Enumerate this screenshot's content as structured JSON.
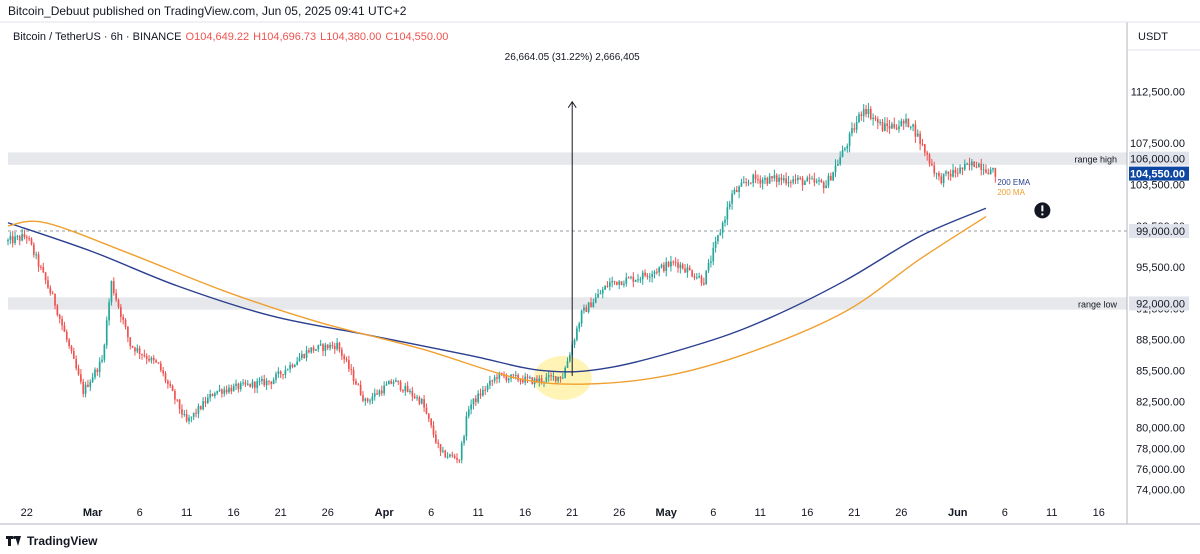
{
  "header": {
    "published_line": "Bitcoin_Debuut published on TradingView.com, Jun 05, 2025 09:41 UTC+2"
  },
  "footer": {
    "brand": "TradingView"
  },
  "chart_data": {
    "type": "candlestick",
    "symbol_line": {
      "name": "Bitcoin / TetherUS · 6h · BINANCE",
      "open": "O104,649.22",
      "high": "H104,696.73",
      "low": "L104,380.00",
      "close": "C104,550.00"
    },
    "currency": "USDT",
    "x_start": "2025-02-20",
    "x_end": "2025-06-19",
    "ylim": [
      73000,
      116500
    ],
    "x_ticks": [
      {
        "date": "2025-02-22",
        "label": "22"
      },
      {
        "date": "2025-03-01",
        "label": "Mar"
      },
      {
        "date": "2025-03-06",
        "label": "6"
      },
      {
        "date": "2025-03-11",
        "label": "11"
      },
      {
        "date": "2025-03-16",
        "label": "16"
      },
      {
        "date": "2025-03-21",
        "label": "21"
      },
      {
        "date": "2025-03-26",
        "label": "26"
      },
      {
        "date": "2025-04-01",
        "label": "Apr"
      },
      {
        "date": "2025-04-06",
        "label": "6"
      },
      {
        "date": "2025-04-11",
        "label": "11"
      },
      {
        "date": "2025-04-16",
        "label": "16"
      },
      {
        "date": "2025-04-21",
        "label": "21"
      },
      {
        "date": "2025-04-26",
        "label": "26"
      },
      {
        "date": "2025-05-01",
        "label": "May"
      },
      {
        "date": "2025-05-06",
        "label": "6"
      },
      {
        "date": "2025-05-11",
        "label": "11"
      },
      {
        "date": "2025-05-16",
        "label": "16"
      },
      {
        "date": "2025-05-21",
        "label": "21"
      },
      {
        "date": "2025-05-26",
        "label": "26"
      },
      {
        "date": "2025-06-01",
        "label": "Jun"
      },
      {
        "date": "2025-06-06",
        "label": "6"
      },
      {
        "date": "2025-06-11",
        "label": "11"
      },
      {
        "date": "2025-06-16",
        "label": "16"
      }
    ],
    "y_ticks": [
      {
        "value": 112500,
        "label": "112,500.00"
      },
      {
        "value": 107500,
        "label": "107,500.00"
      },
      {
        "value": 103500,
        "label": "103,500.00"
      },
      {
        "value": 99500,
        "label": "99,500.00"
      },
      {
        "value": 95500,
        "label": "95,500.00"
      },
      {
        "value": 91500,
        "label": "91,500.00"
      },
      {
        "value": 88500,
        "label": "88,500.00"
      },
      {
        "value": 85500,
        "label": "85,500.00"
      },
      {
        "value": 82500,
        "label": "82,500.00"
      },
      {
        "value": 80000,
        "label": "80,000.00"
      },
      {
        "value": 78000,
        "label": "78,000.00"
      },
      {
        "value": 76000,
        "label": "76,000.00"
      },
      {
        "value": 74000,
        "label": "74,000.00"
      }
    ],
    "price_labels": [
      {
        "value": 106000,
        "label": "106,000.00",
        "style": "grey"
      },
      {
        "value": 104550,
        "label": "104,550.00",
        "style": "last"
      },
      {
        "value": 99000,
        "label": "99,000.00",
        "style": "grey"
      },
      {
        "value": 92000,
        "label": "92,000.00",
        "style": "grey"
      }
    ],
    "zones": [
      {
        "low": 105400,
        "high": 106600,
        "label": "range high"
      },
      {
        "low": 91400,
        "high": 92600,
        "label": "range low"
      }
    ],
    "dashed_level": 99000,
    "colors": {
      "up": "#26a69a",
      "down": "#ef5350",
      "ema": "#2a3f8f",
      "ma": "#f0a030",
      "zone": "#e7e8eb",
      "last": "#0d47a1",
      "highlight": "#fff2a8",
      "text": "#131722",
      "axis": "#b2b5be"
    },
    "series": [
      {
        "name": "200 EMA",
        "x": [
          "2025-02-20",
          "2025-03-01",
          "2025-03-10",
          "2025-03-20",
          "2025-03-30",
          "2025-04-10",
          "2025-04-18",
          "2025-04-25",
          "2025-05-05",
          "2025-05-12",
          "2025-05-20",
          "2025-05-28",
          "2025-06-04"
        ],
        "values": [
          99800,
          97000,
          93700,
          90800,
          89000,
          87000,
          85500,
          85800,
          88200,
          90600,
          94200,
          98500,
          101200
        ]
      },
      {
        "name": "200 MA",
        "x": [
          "2025-02-20",
          "2025-02-24",
          "2025-03-05",
          "2025-03-15",
          "2025-03-25",
          "2025-04-05",
          "2025-04-15",
          "2025-04-22",
          "2025-05-01",
          "2025-05-10",
          "2025-05-20",
          "2025-05-28",
          "2025-06-04"
        ],
        "values": [
          99500,
          99800,
          96800,
          93200,
          90200,
          87600,
          84800,
          84200,
          85000,
          87300,
          91200,
          96300,
          100400
        ]
      }
    ],
    "price_path": {
      "x": [
        "2025-02-20",
        "2025-02-22",
        "2025-02-25",
        "2025-02-28",
        "2025-03-02",
        "2025-03-03",
        "2025-03-05",
        "2025-03-08",
        "2025-03-11",
        "2025-03-14",
        "2025-03-17",
        "2025-03-20",
        "2025-03-24",
        "2025-03-27",
        "2025-03-30",
        "2025-04-02",
        "2025-04-05",
        "2025-04-07",
        "2025-04-09",
        "2025-04-10",
        "2025-04-13",
        "2025-04-17",
        "2025-04-20",
        "2025-04-22",
        "2025-04-25",
        "2025-04-28",
        "2025-05-02",
        "2025-05-05",
        "2025-05-08",
        "2025-05-10",
        "2025-05-14",
        "2025-05-18",
        "2025-05-20",
        "2025-05-22",
        "2025-05-24",
        "2025-05-27",
        "2025-05-30",
        "2025-06-01",
        "2025-06-03",
        "2025-06-05"
      ],
      "values": [
        98000,
        98500,
        92000,
        83500,
        86500,
        94000,
        88000,
        86000,
        80500,
        83500,
        84000,
        84500,
        87500,
        88000,
        82500,
        84500,
        82500,
        77500,
        77000,
        82000,
        85000,
        84500,
        85000,
        91000,
        94000,
        94500,
        96000,
        94200,
        102500,
        104000,
        104000,
        103500,
        107000,
        111000,
        109000,
        109500,
        104000,
        104800,
        105600,
        104550
      ]
    },
    "annotations": [
      {
        "type": "measure",
        "label": "26,664.05 (31.22%) 2,666,405",
        "x": "2025-04-21",
        "from": 85000,
        "to": 111500
      },
      {
        "type": "highlight",
        "x": "2025-04-20",
        "y": 84800
      },
      {
        "type": "label",
        "text": "200 EMA",
        "x": "2025-06-05",
        "y": 101500
      },
      {
        "type": "label",
        "text": "200 MA",
        "x": "2025-06-05",
        "y": 100400
      },
      {
        "type": "alert",
        "x": "2025-06-10",
        "y": 101000
      }
    ]
  }
}
